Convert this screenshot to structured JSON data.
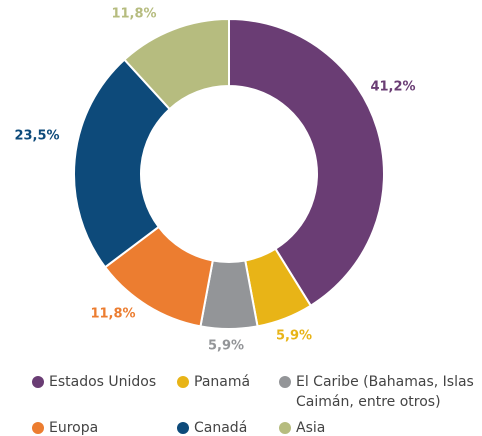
{
  "chart_data": {
    "type": "donut",
    "categories": [
      "Estados Unidos",
      "Panamá",
      "El Caribe (Bahamas, Islas Caimán, entre otros)",
      "Europa",
      "Canadá",
      "Asia"
    ],
    "values": [
      41.2,
      5.9,
      5.9,
      11.8,
      23.5,
      11.8
    ],
    "value_labels": [
      "41,2%",
      "5,9%",
      "5,9%",
      "11,8%",
      "23,5%",
      "11,8%"
    ],
    "colors": [
      "#6a3d74",
      "#e8b417",
      "#939598",
      "#ec7d30",
      "#0d4a7a",
      "#b6bc7f"
    ]
  }
}
